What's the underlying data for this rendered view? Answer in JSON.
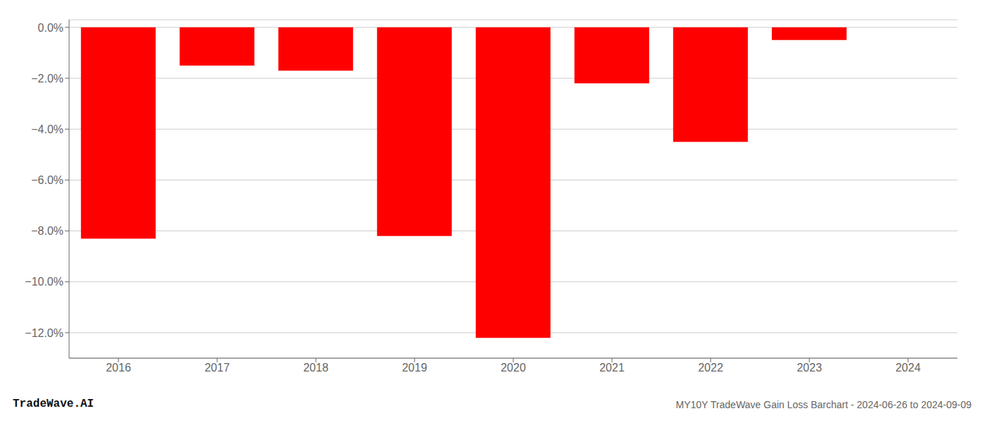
{
  "chart_data": {
    "type": "bar",
    "categories": [
      "2016",
      "2017",
      "2018",
      "2019",
      "2020",
      "2021",
      "2022",
      "2023",
      "2024"
    ],
    "values": [
      -8.3,
      -1.5,
      -1.7,
      -8.2,
      -12.2,
      -2.2,
      -4.5,
      -0.5,
      0.0
    ],
    "color": "#ff0000",
    "ylim": [
      -13.0,
      0.3
    ],
    "yticks": [
      {
        "value": 0.0,
        "label": "0.0%"
      },
      {
        "value": -2.0,
        "label": "−2.0%"
      },
      {
        "value": -4.0,
        "label": "−4.0%"
      },
      {
        "value": -6.0,
        "label": "−6.0%"
      },
      {
        "value": -8.0,
        "label": "−8.0%"
      },
      {
        "value": -10.0,
        "label": "−10.0%"
      },
      {
        "value": -12.0,
        "label": "−12.0%"
      }
    ],
    "grid": true,
    "annotations": [
      "TradeWave.AI",
      "MY10Y TradeWave Gain Loss Barchart - 2024-06-26 to 2024-09-09"
    ]
  }
}
